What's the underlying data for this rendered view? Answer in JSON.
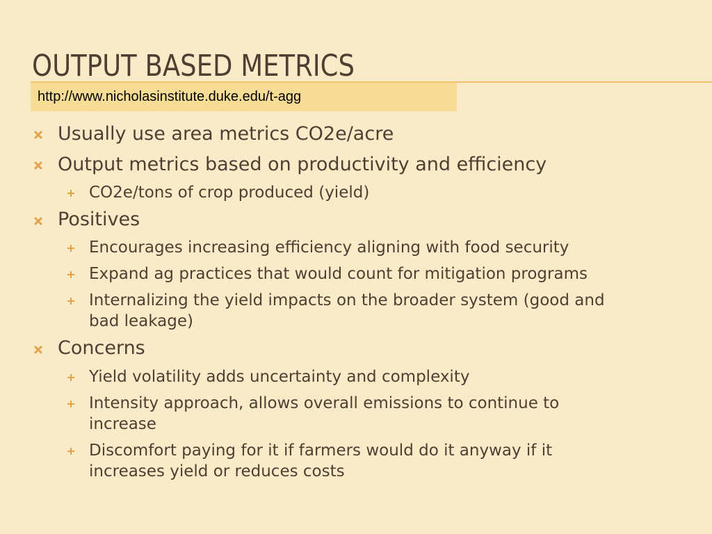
{
  "slide": {
    "title": "OUTPUT BASED METRICS",
    "url": "http://www.nicholasinstitute.duke.edu/t-agg",
    "bullets": [
      {
        "text": "Usually use area metrics CO2e/acre"
      },
      {
        "text": "Output metrics based on productivity and efficiency",
        "sub": [
          "CO2e/tons of crop produced (yield)"
        ]
      },
      {
        "text": "Positives",
        "sub": [
          "Encourages increasing efficiency aligning with food security",
          "Expand ag practices that would count for mitigation programs",
          [
            "Internalizing the yield impacts on the broader system (good and",
            "bad leakage)"
          ]
        ]
      },
      {
        "text": "Concerns",
        "sub": [
          "Yield volatility adds uncertainty and complexity",
          [
            "Intensity approach, allows overall emissions to continue to",
            "increase"
          ],
          [
            "Discomfort  paying for it if farmers would do it anyway if it",
            "increases yield or reduces costs"
          ]
        ]
      }
    ]
  },
  "colors": {
    "background": "#faebc8",
    "title": "#4f3f33",
    "accent": "#f4c26d",
    "url_box": "#f7dc96",
    "bullet": "#e3a14a",
    "text": "#4f3f33"
  },
  "icons": {
    "level1": "x-bullet-icon",
    "level2": "plus-bullet-icon"
  }
}
